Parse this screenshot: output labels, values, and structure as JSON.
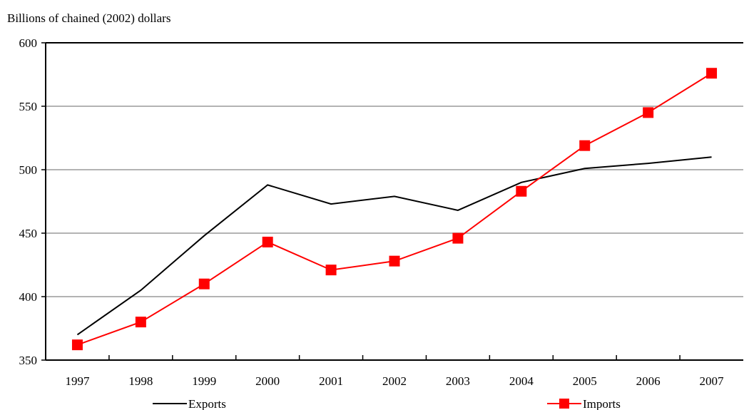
{
  "chart_data": {
    "type": "line",
    "title": "",
    "xlabel": "",
    "ylabel": "Billions of chained (2002) dollars",
    "categories": [
      "1997",
      "1998",
      "1999",
      "2000",
      "2001",
      "2002",
      "2003",
      "2004",
      "2005",
      "2006",
      "2007"
    ],
    "ylim": [
      350,
      600
    ],
    "yticks": [
      350,
      400,
      450,
      500,
      550,
      600
    ],
    "grid": true,
    "legend": "bottom",
    "series": [
      {
        "name": "Exports",
        "color": "#000000",
        "marker": "none",
        "values": [
          370,
          405,
          448,
          488,
          473,
          479,
          468,
          490,
          501,
          505,
          510
        ]
      },
      {
        "name": "Imports",
        "color": "#ff0000",
        "marker": "square",
        "values": [
          362,
          380,
          410,
          443,
          421,
          428,
          446,
          483,
          519,
          545,
          576
        ]
      }
    ]
  }
}
